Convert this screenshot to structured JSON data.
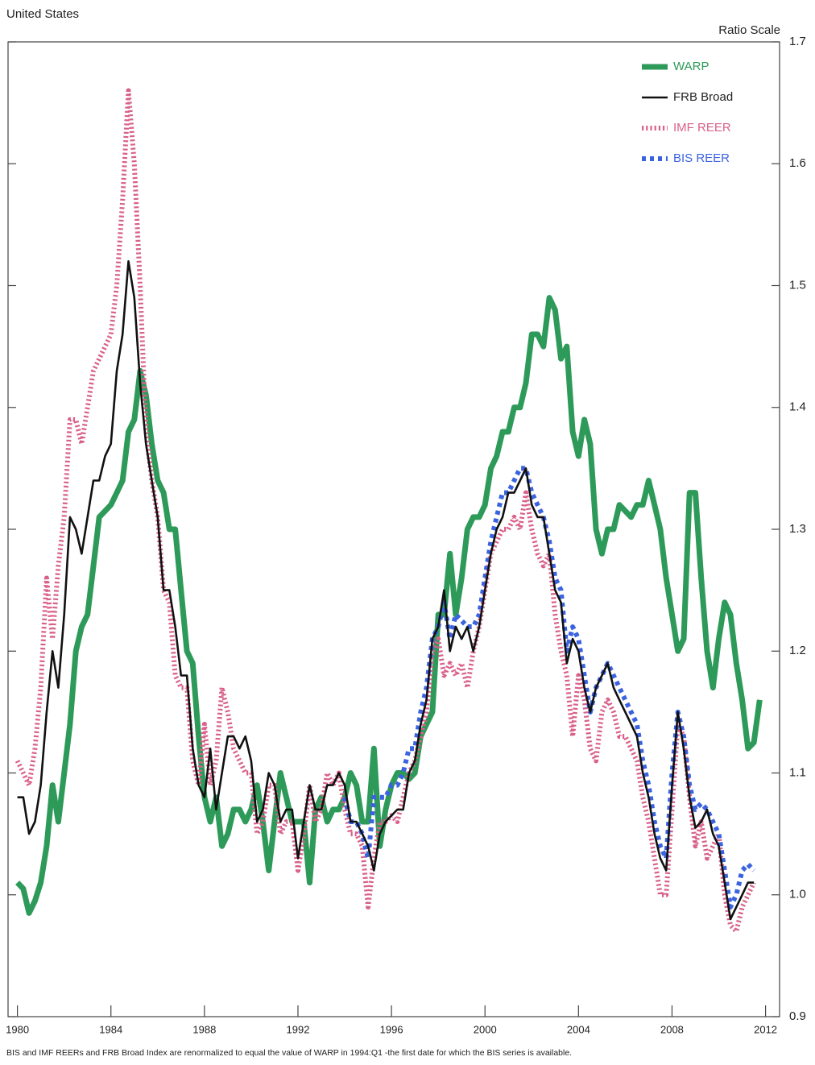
{
  "chart_data": {
    "type": "line",
    "title": "United States",
    "y_axis_label": "Ratio Scale",
    "footnote": "BIS and IMF REERs and FRB Broad Index are renormalized to equal the value of WARP in 1994:Q1 -the first date for which the BIS series is available.",
    "legend_position": "upper right",
    "xlim": [
      1979.6,
      2012.6
    ],
    "xticks": [
      1980,
      1984,
      1988,
      1992,
      1996,
      2000,
      2004,
      2008,
      2012
    ],
    "ylim": [
      0.9,
      1.7
    ],
    "yticks": [
      0.9,
      {
        "value": 1,
        "label": "1.0"
      },
      1.1,
      1.2,
      1.3,
      1.4,
      1.5,
      1.6,
      1.7
    ],
    "x": [
      1980,
      1980.25,
      1980.5,
      1980.75,
      1981,
      1981.25,
      1981.5,
      1981.75,
      1982,
      1982.25,
      1982.5,
      1982.75,
      1983,
      1983.25,
      1983.5,
      1983.75,
      1984,
      1984.25,
      1984.5,
      1984.75,
      1985,
      1985.25,
      1985.5,
      1985.75,
      1986,
      1986.25,
      1986.5,
      1986.75,
      1987,
      1987.25,
      1987.5,
      1987.75,
      1988,
      1988.25,
      1988.5,
      1988.75,
      1989,
      1989.25,
      1989.5,
      1989.75,
      1990,
      1990.25,
      1990.5,
      1990.75,
      1991,
      1991.25,
      1991.5,
      1991.75,
      1992,
      1992.25,
      1992.5,
      1992.75,
      1993,
      1993.25,
      1993.5,
      1993.75,
      1994,
      1994.25,
      1994.5,
      1994.75,
      1995,
      1995.25,
      1995.5,
      1995.75,
      1996,
      1996.25,
      1996.5,
      1996.75,
      1997,
      1997.25,
      1997.5,
      1997.75,
      1998,
      1998.25,
      1998.5,
      1998.75,
      1999,
      1999.25,
      1999.5,
      1999.75,
      2000,
      2000.25,
      2000.5,
      2000.75,
      2001,
      2001.25,
      2001.5,
      2001.75,
      2002,
      2002.25,
      2002.5,
      2002.75,
      2003,
      2003.25,
      2003.5,
      2003.75,
      2004,
      2004.25,
      2004.5,
      2004.75,
      2005,
      2005.25,
      2005.5,
      2005.75,
      2006,
      2006.25,
      2006.5,
      2006.75,
      2007,
      2007.25,
      2007.5,
      2007.75,
      2008,
      2008.25,
      2008.5,
      2008.75,
      2009,
      2009.25,
      2009.5,
      2009.75,
      2010,
      2010.25,
      2010.5,
      2010.75,
      2011,
      2011.25,
      2011.5,
      2011.75
    ],
    "series": [
      {
        "name": "WARP",
        "color": "#2e9a5a",
        "line_style": "thick",
        "values": [
          1.01,
          1.005,
          0.985,
          0.995,
          1.01,
          1.04,
          1.09,
          1.06,
          1.1,
          1.14,
          1.2,
          1.22,
          1.23,
          1.27,
          1.31,
          1.315,
          1.32,
          1.33,
          1.34,
          1.38,
          1.39,
          1.43,
          1.41,
          1.37,
          1.34,
          1.33,
          1.3,
          1.3,
          1.25,
          1.2,
          1.19,
          1.13,
          1.08,
          1.06,
          1.08,
          1.04,
          1.05,
          1.07,
          1.07,
          1.06,
          1.07,
          1.09,
          1.06,
          1.02,
          1.06,
          1.1,
          1.08,
          1.06,
          1.06,
          1.06,
          1.01,
          1.07,
          1.08,
          1.06,
          1.07,
          1.07,
          1.08,
          1.1,
          1.09,
          1.06,
          1.06,
          1.12,
          1.04,
          1.07,
          1.09,
          1.1,
          1.1,
          1.095,
          1.1,
          1.13,
          1.14,
          1.15,
          1.23,
          1.23,
          1.28,
          1.23,
          1.26,
          1.3,
          1.31,
          1.31,
          1.32,
          1.35,
          1.36,
          1.38,
          1.38,
          1.4,
          1.4,
          1.42,
          1.46,
          1.46,
          1.45,
          1.49,
          1.48,
          1.44,
          1.45,
          1.38,
          1.36,
          1.39,
          1.37,
          1.3,
          1.28,
          1.3,
          1.3,
          1.32,
          1.315,
          1.31,
          1.32,
          1.32,
          1.34,
          1.32,
          1.3,
          1.26,
          1.23,
          1.2,
          1.21,
          1.33,
          1.33,
          1.26,
          1.2,
          1.17,
          1.21,
          1.24,
          1.23,
          1.19,
          1.16,
          1.12,
          1.125,
          1.16
        ]
      },
      {
        "name": "FRB Broad",
        "color": "#111111",
        "line_style": "solid",
        "values": [
          1.08,
          1.08,
          1.05,
          1.06,
          1.09,
          1.15,
          1.2,
          1.17,
          1.23,
          1.31,
          1.3,
          1.28,
          1.31,
          1.34,
          1.34,
          1.36,
          1.37,
          1.43,
          1.46,
          1.52,
          1.49,
          1.42,
          1.37,
          1.34,
          1.31,
          1.25,
          1.25,
          1.22,
          1.18,
          1.18,
          1.12,
          1.09,
          1.08,
          1.12,
          1.07,
          1.1,
          1.13,
          1.13,
          1.12,
          1.13,
          1.11,
          1.06,
          1.07,
          1.1,
          1.09,
          1.06,
          1.07,
          1.07,
          1.03,
          1.06,
          1.09,
          1.07,
          1.07,
          1.09,
          1.09,
          1.1,
          1.09,
          1.06,
          1.06,
          1.05,
          1.04,
          1.02,
          1.05,
          1.06,
          1.065,
          1.07,
          1.07,
          1.1,
          1.11,
          1.14,
          1.16,
          1.21,
          1.22,
          1.25,
          1.2,
          1.22,
          1.21,
          1.22,
          1.2,
          1.22,
          1.25,
          1.28,
          1.3,
          1.31,
          1.33,
          1.33,
          1.34,
          1.35,
          1.32,
          1.31,
          1.31,
          1.28,
          1.25,
          1.24,
          1.19,
          1.21,
          1.2,
          1.17,
          1.15,
          1.17,
          1.18,
          1.19,
          1.17,
          1.16,
          1.15,
          1.14,
          1.13,
          1.1,
          1.08,
          1.05,
          1.03,
          1.02,
          1.09,
          1.15,
          1.12,
          1.08,
          1.055,
          1.06,
          1.07,
          1.05,
          1.04,
          1.01,
          0.98,
          0.99,
          1.0,
          1.01,
          1.01,
          null
        ]
      },
      {
        "name": "IMF REER",
        "color": "#d9608a",
        "line_style": "dotted",
        "values": [
          1.11,
          1.1,
          1.09,
          1.12,
          1.17,
          1.26,
          1.21,
          1.27,
          1.31,
          1.39,
          1.39,
          1.37,
          1.4,
          1.43,
          1.44,
          1.45,
          1.46,
          1.5,
          1.57,
          1.66,
          1.6,
          1.5,
          1.38,
          1.34,
          1.31,
          1.25,
          1.24,
          1.18,
          1.17,
          1.17,
          1.11,
          1.09,
          1.14,
          1.09,
          1.11,
          1.17,
          1.15,
          1.12,
          1.11,
          1.1,
          1.1,
          1.05,
          1.06,
          1.09,
          1.09,
          1.05,
          1.06,
          1.06,
          1.02,
          1.05,
          1.09,
          1.06,
          1.07,
          1.1,
          1.09,
          1.1,
          1.07,
          1.05,
          1.05,
          1.04,
          0.99,
          1.03,
          1.06,
          1.06,
          1.065,
          1.06,
          1.08,
          1.1,
          1.11,
          1.13,
          1.15,
          1.2,
          1.21,
          1.18,
          1.19,
          1.18,
          1.19,
          1.17,
          1.2,
          1.22,
          1.25,
          1.28,
          1.29,
          1.3,
          1.3,
          1.31,
          1.3,
          1.33,
          1.3,
          1.28,
          1.27,
          1.28,
          1.23,
          1.2,
          1.18,
          1.13,
          1.18,
          1.16,
          1.12,
          1.11,
          1.15,
          1.16,
          1.15,
          1.13,
          1.13,
          1.12,
          1.11,
          1.08,
          1.06,
          1.03,
          1.0,
          1.0,
          1.07,
          1.14,
          1.13,
          1.08,
          1.04,
          1.06,
          1.03,
          1.04,
          1.05,
          1.0,
          0.975,
          0.97,
          0.99,
          1.0,
          1.01,
          null
        ]
      },
      {
        "name": "BIS REER",
        "color": "#3b63e0",
        "line_style": "dashed",
        "values": [
          null,
          null,
          null,
          null,
          null,
          null,
          null,
          null,
          null,
          null,
          null,
          null,
          null,
          null,
          null,
          null,
          null,
          null,
          null,
          null,
          null,
          null,
          null,
          null,
          null,
          null,
          null,
          null,
          null,
          null,
          null,
          null,
          null,
          null,
          null,
          null,
          null,
          null,
          null,
          null,
          null,
          null,
          null,
          null,
          null,
          null,
          null,
          null,
          null,
          null,
          null,
          null,
          null,
          null,
          null,
          null,
          1.08,
          1.06,
          1.06,
          1.05,
          1.03,
          1.08,
          1.08,
          1.08,
          1.09,
          1.09,
          1.1,
          1.12,
          1.12,
          1.15,
          1.17,
          1.21,
          1.22,
          1.24,
          1.21,
          1.23,
          1.225,
          1.22,
          1.22,
          1.23,
          1.26,
          1.29,
          1.31,
          1.33,
          1.33,
          1.34,
          1.35,
          1.35,
          1.33,
          1.32,
          1.31,
          1.29,
          1.26,
          1.25,
          1.2,
          1.22,
          1.21,
          1.18,
          1.15,
          1.17,
          1.18,
          1.19,
          1.18,
          1.17,
          1.16,
          1.15,
          1.14,
          1.11,
          1.09,
          1.06,
          1.04,
          1.03,
          1.1,
          1.15,
          1.13,
          1.09,
          1.07,
          1.075,
          1.07,
          1.06,
          1.05,
          1.02,
          0.99,
          1.0,
          1.02,
          1.025,
          1.02,
          null
        ]
      }
    ]
  }
}
